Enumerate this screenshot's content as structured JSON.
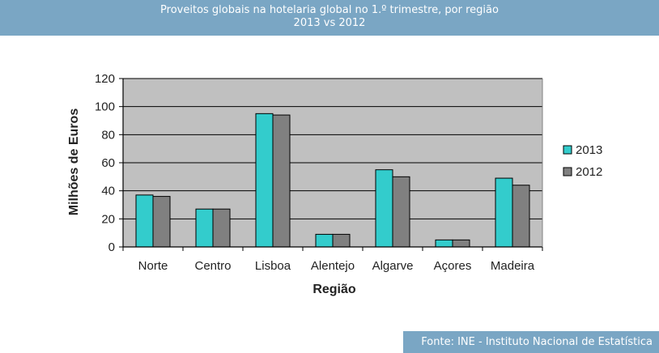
{
  "header": {
    "title_line1": "Proveitos globais na hotelaria global no 1.º trimestre, por região",
    "title_line2": "2013 vs 2012"
  },
  "source": "Fonte: INE - Instituto Nacional de Estatística",
  "colors": {
    "header_bg": "#7aa6c4",
    "plot_bg": "#c0c0c0",
    "series_2013": "#33cccc",
    "series_2012": "#808080"
  },
  "chart_data": {
    "type": "bar",
    "categories": [
      "Norte",
      "Centro",
      "Lisboa",
      "Alentejo",
      "Algarve",
      "Açores",
      "Madeira"
    ],
    "series": [
      {
        "name": "2013",
        "values": [
          37,
          27,
          95,
          9,
          55,
          5,
          49
        ]
      },
      {
        "name": "2012",
        "values": [
          36,
          27,
          94,
          9,
          50,
          5,
          44
        ]
      }
    ],
    "xlabel": "Região",
    "ylabel": "Milhões de Euros",
    "ylim": [
      0,
      120
    ],
    "yticks": [
      0,
      20,
      40,
      60,
      80,
      100,
      120
    ],
    "grid": true,
    "legend_position": "right"
  }
}
